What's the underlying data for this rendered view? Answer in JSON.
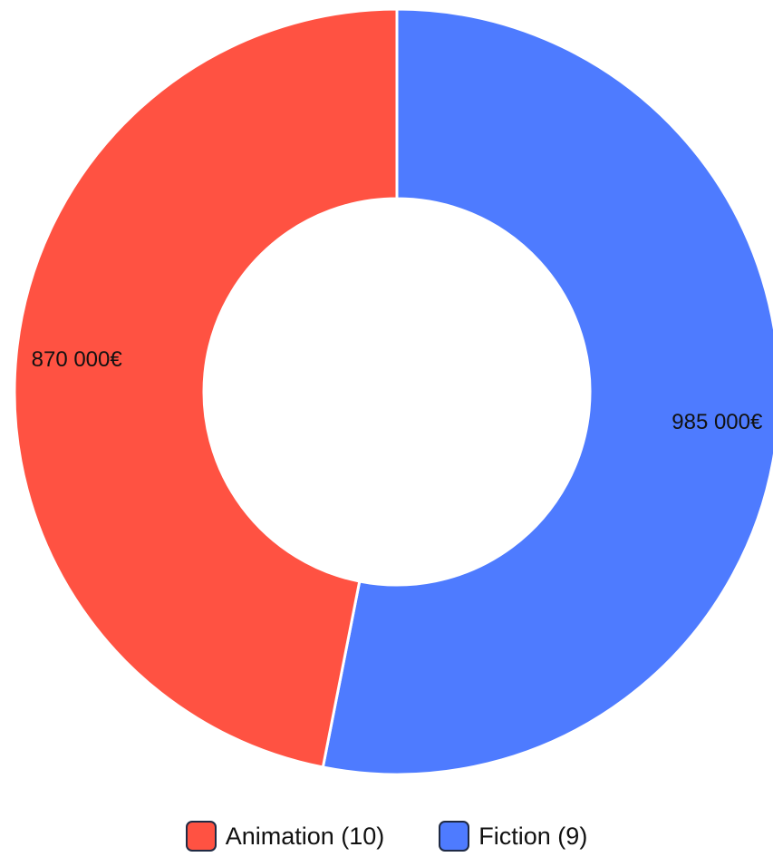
{
  "chart_data": {
    "type": "pie",
    "variant": "donut",
    "title": "",
    "series": [
      {
        "name": "Animation (10)",
        "value": 870000,
        "value_label": "870 000€",
        "color": "#FF5242"
      },
      {
        "name": "Fiction (9)",
        "value": 985000,
        "value_label": "985 000€",
        "color": "#4E7BFF"
      }
    ],
    "legend_position": "bottom",
    "start_angle": "top (12 o'clock)",
    "direction": "clockwise",
    "slice_border_color": "#ffffff"
  }
}
